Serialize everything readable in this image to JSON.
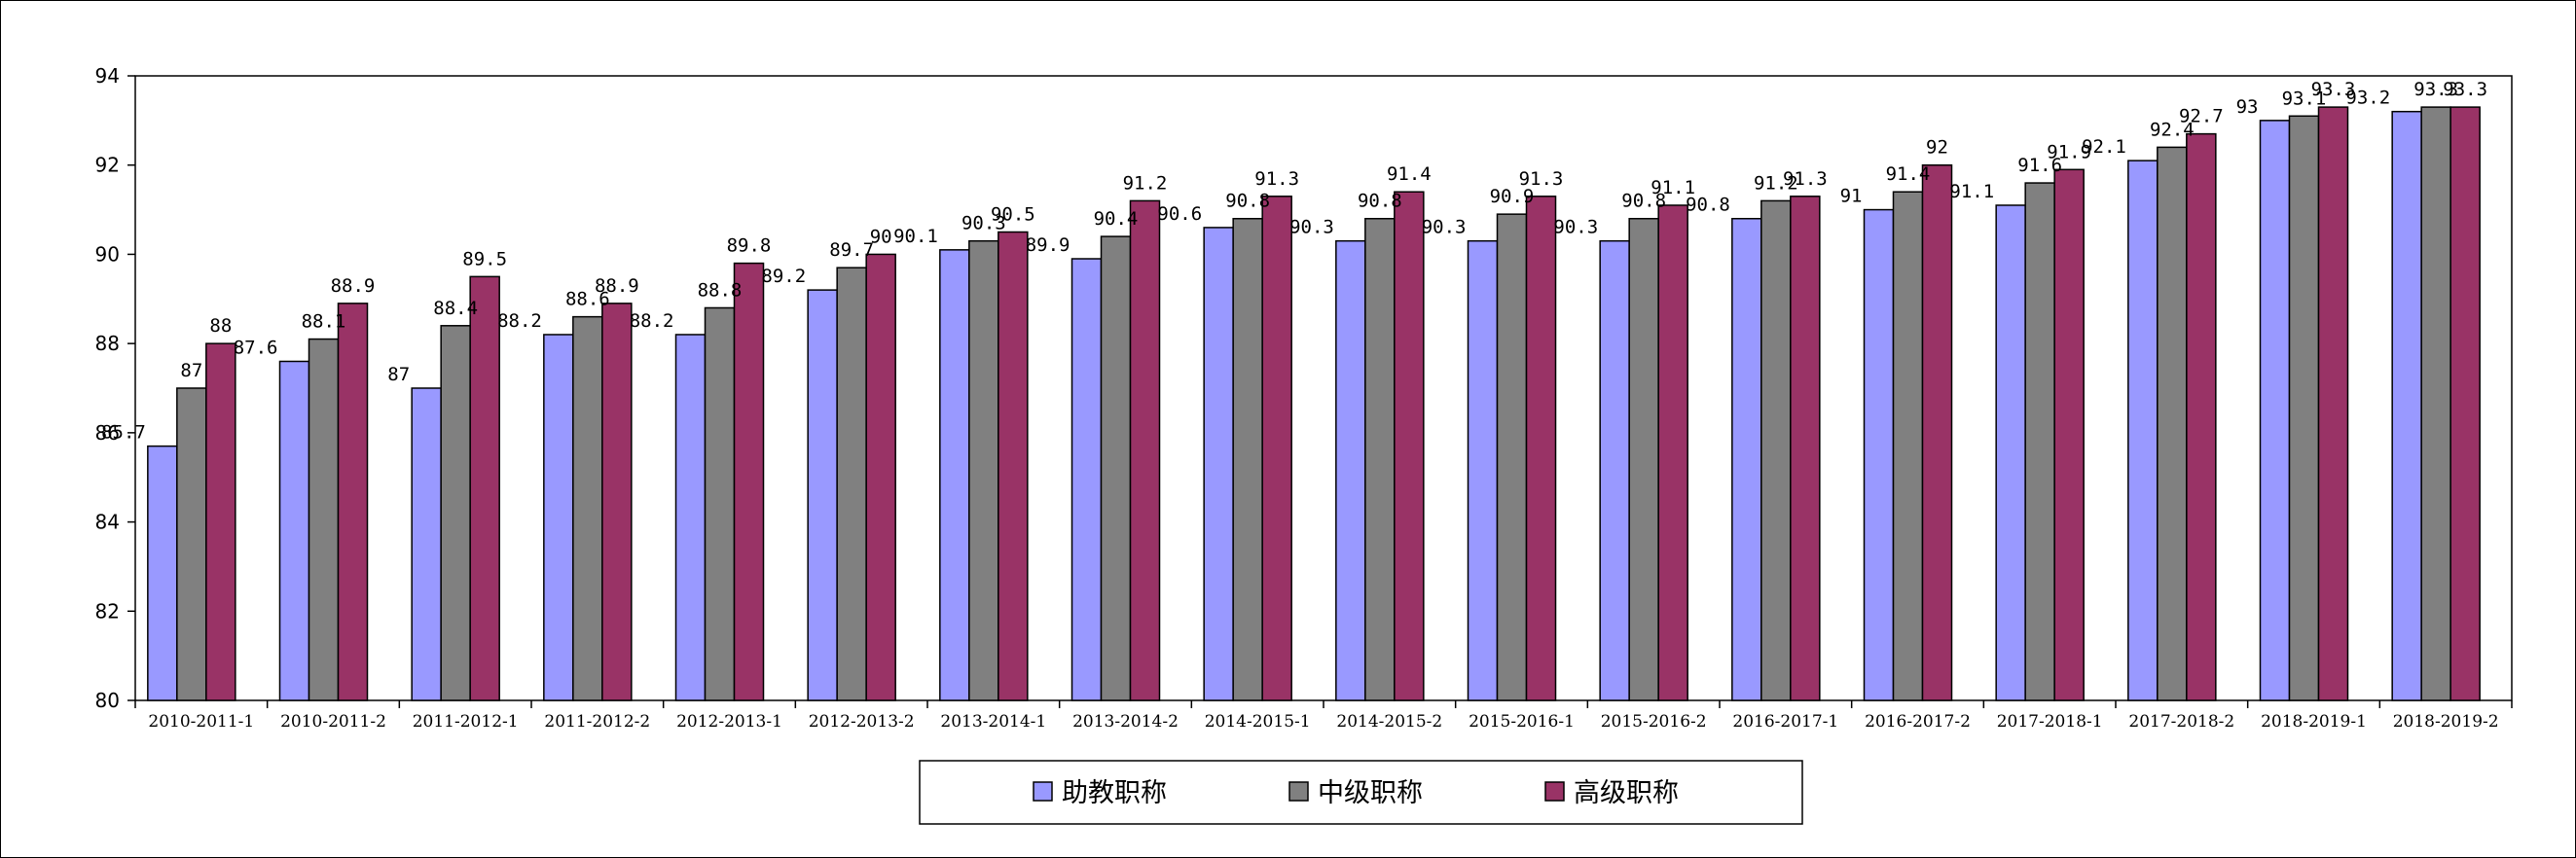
{
  "chart_data": {
    "type": "bar",
    "categories": [
      "2010-2011-1",
      "2010-2011-2",
      "2011-2012-1",
      "2011-2012-2",
      "2012-2013-1",
      "2012-2013-2",
      "2013-2014-1",
      "2013-2014-2",
      "2014-2015-1",
      "2014-2015-2",
      "2015-2016-1",
      "2015-2016-2",
      "2016-2017-1",
      "2016-2017-2",
      "2017-2018-1",
      "2017-2018-2",
      "2018-2019-1",
      "2018-2019-2"
    ],
    "series": [
      {
        "name": "助教职称",
        "color": "#9999FF",
        "values": [
          85.7,
          87.6,
          87,
          88.2,
          88.2,
          89.2,
          90.1,
          89.9,
          90.6,
          90.3,
          90.3,
          90.3,
          90.8,
          91,
          91.1,
          92.1,
          93,
          93.2
        ]
      },
      {
        "name": "中级职称",
        "color": "#808080",
        "values": [
          87,
          88.1,
          88.4,
          88.6,
          88.8,
          89.7,
          90.3,
          90.4,
          90.8,
          90.8,
          90.9,
          90.8,
          91.2,
          91.4,
          91.6,
          92.4,
          93.1,
          93.3
        ]
      },
      {
        "name": "高级职称",
        "color": "#993366",
        "values": [
          88,
          88.9,
          89.5,
          88.9,
          89.8,
          90,
          90.5,
          91.2,
          91.3,
          91.4,
          91.3,
          91.1,
          91.3,
          92,
          91.9,
          92.7,
          93.3,
          93.3
        ]
      }
    ],
    "ylim": [
      80,
      94
    ],
    "yticks": [
      80,
      82,
      84,
      86,
      88,
      90,
      92,
      94
    ],
    "title": "",
    "xlabel": "",
    "ylabel": "",
    "grid": false,
    "legend_position": "bottom"
  }
}
